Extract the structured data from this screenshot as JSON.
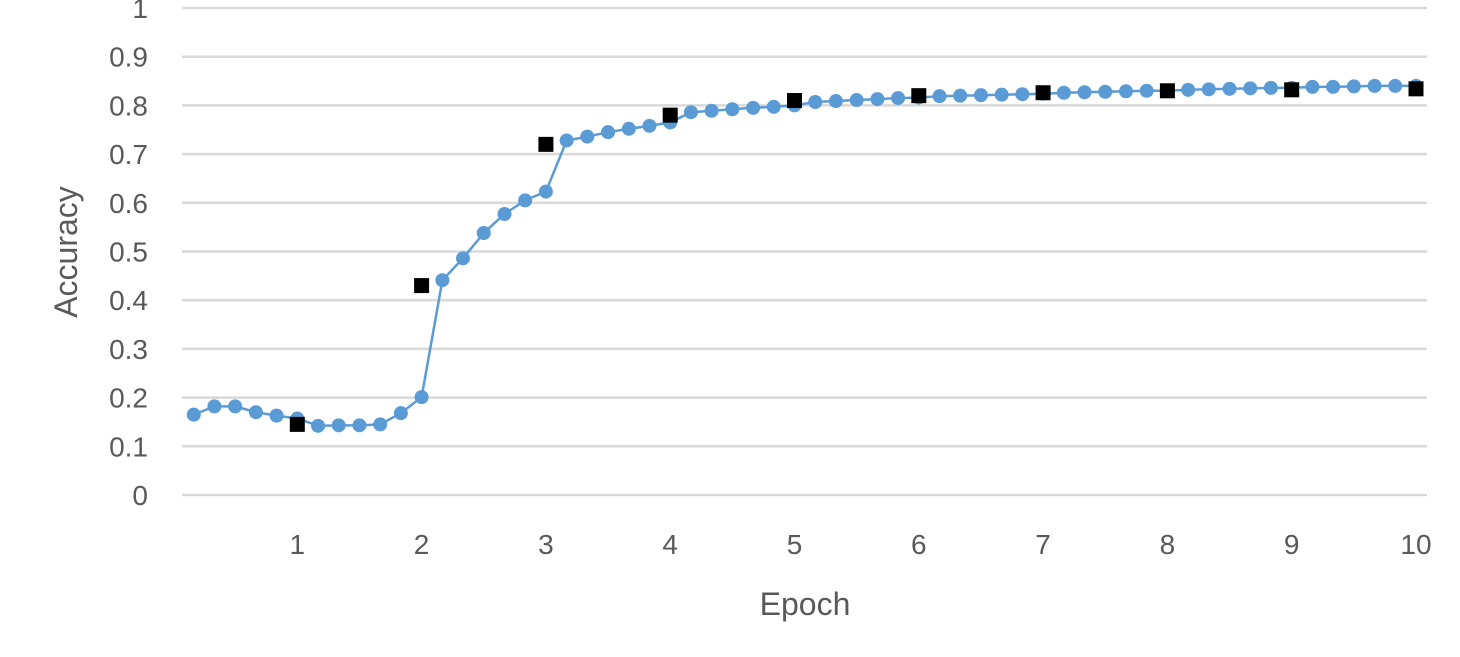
{
  "chart_data": {
    "type": "line",
    "xlabel": "Epoch",
    "ylabel": "Accuracy",
    "xlim": [
      0.2,
      10.1
    ],
    "ylim": [
      0,
      1
    ],
    "x_ticks": [
      1,
      2,
      3,
      4,
      5,
      6,
      7,
      8,
      9,
      10
    ],
    "y_ticks": [
      0,
      0.1,
      0.2,
      0.3,
      0.4,
      0.5,
      0.6,
      0.7,
      0.8,
      0.9,
      1
    ],
    "y_tick_labels": [
      "0",
      "0.1",
      "0.2",
      "0.3",
      "0.4",
      "0.5",
      "0.6",
      "0.7",
      "0.8",
      "0.9",
      "1"
    ],
    "grid": true,
    "legend": "none",
    "series": [
      {
        "style": "line-with-circle-markers",
        "color": "#5b9bd5",
        "points": [
          [
            0.167,
            0.165
          ],
          [
            0.333,
            0.182
          ],
          [
            0.5,
            0.182
          ],
          [
            0.667,
            0.17
          ],
          [
            0.833,
            0.163
          ],
          [
            1.0,
            0.157
          ],
          [
            1.167,
            0.142
          ],
          [
            1.333,
            0.143
          ],
          [
            1.5,
            0.143
          ],
          [
            1.667,
            0.145
          ],
          [
            1.833,
            0.168
          ],
          [
            2.0,
            0.201
          ],
          [
            2.167,
            0.441
          ],
          [
            2.333,
            0.486
          ],
          [
            2.5,
            0.538
          ],
          [
            2.667,
            0.577
          ],
          [
            2.833,
            0.605
          ],
          [
            3.0,
            0.623
          ],
          [
            3.167,
            0.728
          ],
          [
            3.333,
            0.736
          ],
          [
            3.5,
            0.745
          ],
          [
            3.667,
            0.752
          ],
          [
            3.833,
            0.758
          ],
          [
            4.0,
            0.765
          ],
          [
            4.167,
            0.786
          ],
          [
            4.333,
            0.789
          ],
          [
            4.5,
            0.792
          ],
          [
            4.667,
            0.795
          ],
          [
            4.833,
            0.797
          ],
          [
            5.0,
            0.8
          ],
          [
            5.167,
            0.807
          ],
          [
            5.333,
            0.809
          ],
          [
            5.5,
            0.811
          ],
          [
            5.667,
            0.813
          ],
          [
            5.833,
            0.815
          ],
          [
            6.0,
            0.816
          ],
          [
            6.167,
            0.819
          ],
          [
            6.333,
            0.82
          ],
          [
            6.5,
            0.821
          ],
          [
            6.667,
            0.822
          ],
          [
            6.833,
            0.823
          ],
          [
            7.0,
            0.824
          ],
          [
            7.167,
            0.826
          ],
          [
            7.333,
            0.827
          ],
          [
            7.5,
            0.828
          ],
          [
            7.667,
            0.829
          ],
          [
            7.833,
            0.83
          ],
          [
            8.0,
            0.83
          ],
          [
            8.167,
            0.832
          ],
          [
            8.333,
            0.833
          ],
          [
            8.5,
            0.834
          ],
          [
            8.667,
            0.835
          ],
          [
            8.833,
            0.836
          ],
          [
            9.0,
            0.836
          ],
          [
            9.167,
            0.838
          ],
          [
            9.333,
            0.838
          ],
          [
            9.5,
            0.839
          ],
          [
            9.667,
            0.84
          ],
          [
            9.833,
            0.84
          ],
          [
            10.0,
            0.84
          ]
        ]
      },
      {
        "style": "square-markers",
        "color": "#000000",
        "points": [
          [
            1,
            0.145
          ],
          [
            2,
            0.43
          ],
          [
            3,
            0.72
          ],
          [
            4,
            0.78
          ],
          [
            5,
            0.81
          ],
          [
            6,
            0.82
          ],
          [
            7,
            0.826
          ],
          [
            8,
            0.83
          ],
          [
            9,
            0.832
          ],
          [
            10,
            0.834
          ]
        ]
      }
    ]
  }
}
